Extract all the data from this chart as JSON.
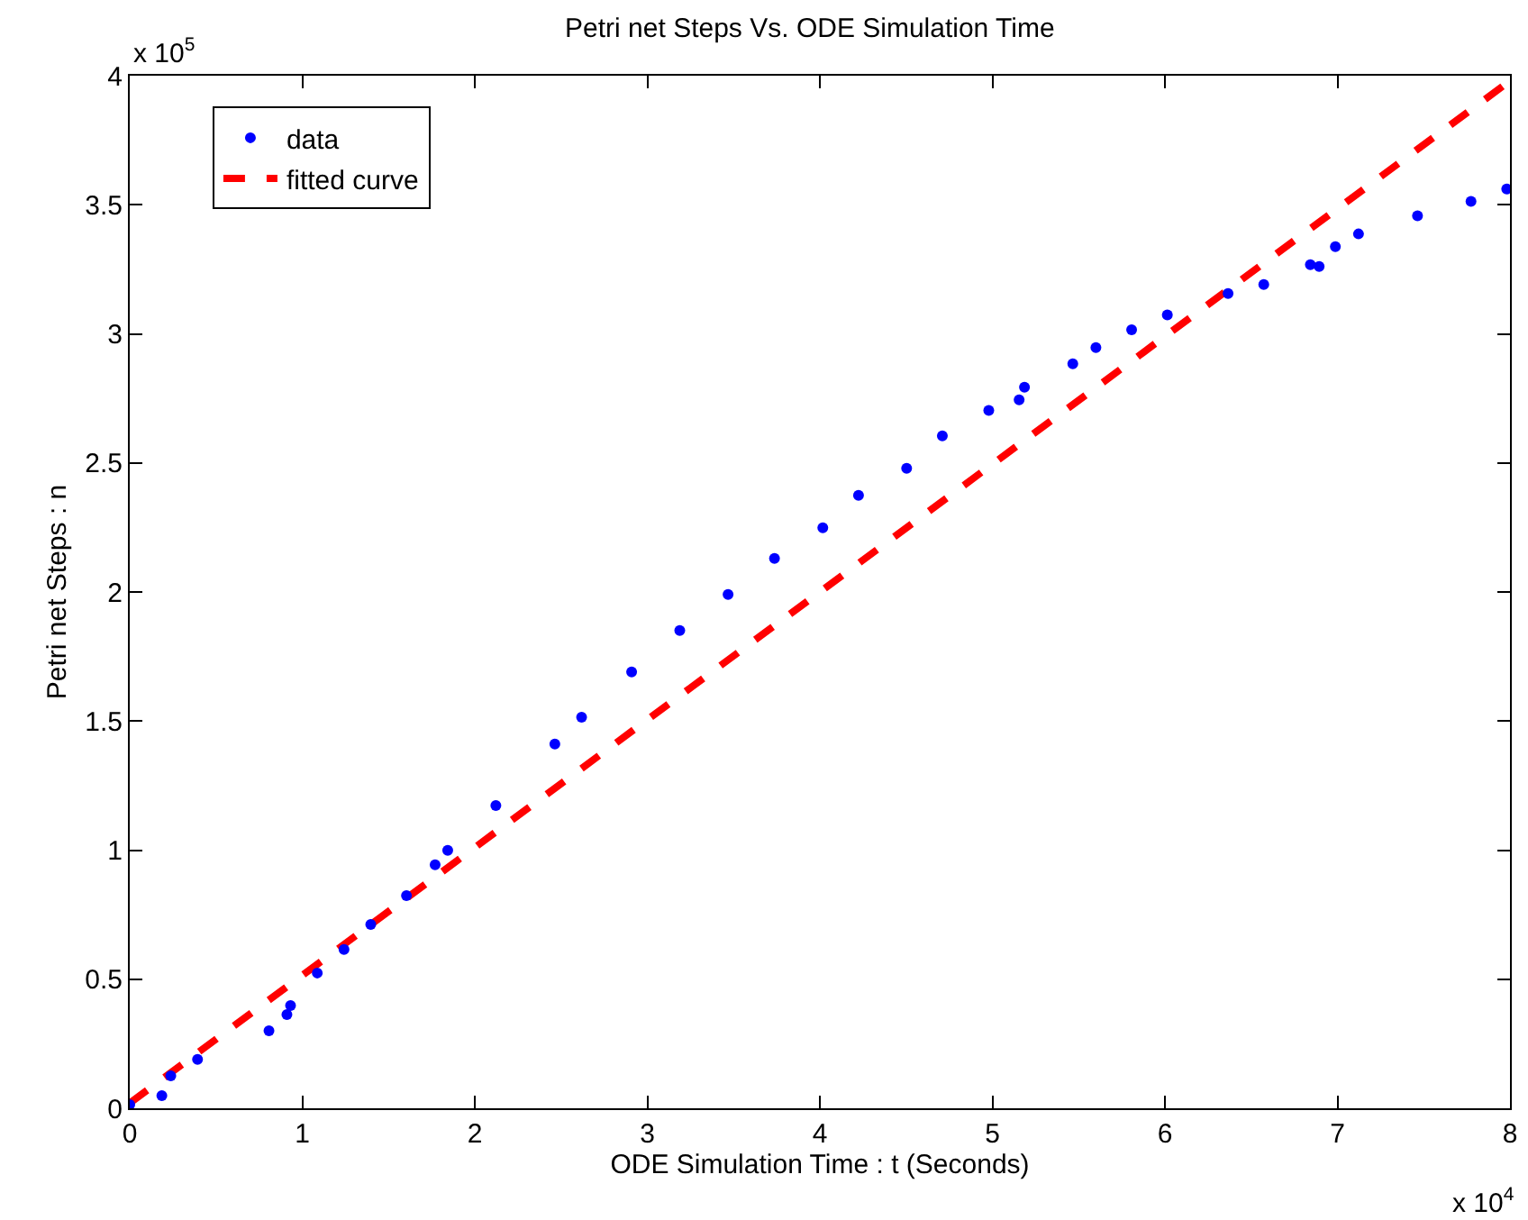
{
  "chart_data": {
    "type": "scatter",
    "title": "Petri net Steps Vs. ODE Simulation Time",
    "xlabel": "ODE Simulation Time : t (Seconds)",
    "ylabel": "Petri net Steps : n",
    "annotations": [
      "x 10$^{5}$",
      "x 10$^{4}$"
    ],
    "series": [
      {
        "name": "data",
        "marker": "circle",
        "color": "#0000ff",
        "x": [
          0,
          0.186,
          0.238,
          0.393,
          0.807,
          0.911,
          0.932,
          1.087,
          1.242,
          1.397,
          1.604,
          1.77,
          1.843,
          2.122,
          2.464,
          2.619,
          2.909,
          3.188,
          3.468,
          3.737,
          4.017,
          4.224,
          4.503,
          4.71,
          4.979,
          5.155,
          5.186,
          5.466,
          5.6,
          5.807,
          6.014,
          6.366,
          6.573,
          6.843,
          6.894,
          6.988,
          7.122,
          7.464,
          7.774,
          7.981
        ],
        "values": [
          0.014,
          0.049,
          0.126,
          0.189,
          0.3,
          0.363,
          0.398,
          0.524,
          0.615,
          0.712,
          0.824,
          0.943,
          0.999,
          1.173,
          1.411,
          1.515,
          1.69,
          1.851,
          1.99,
          2.13,
          2.249,
          2.374,
          2.479,
          2.605,
          2.703,
          2.744,
          2.793,
          2.884,
          2.947,
          3.016,
          3.073,
          3.156,
          3.191,
          3.268,
          3.261,
          3.338,
          3.387,
          3.457,
          3.513,
          3.561
        ]
      },
      {
        "name": "fitted curve",
        "type": "line",
        "line_style": "dashed",
        "color": "#ff0000",
        "x": [
          0,
          8
        ],
        "values": [
          0.02,
          3.98
        ]
      }
    ],
    "xlim": [
      0,
      8
    ],
    "ylim": [
      0,
      4
    ],
    "xticks": [
      0,
      1,
      2,
      3,
      4,
      5,
      6,
      7,
      8
    ],
    "yticks": [
      0,
      0.5,
      1,
      1.5,
      2,
      2.5,
      3,
      3.5,
      4
    ],
    "grid": false,
    "legend": "top left"
  }
}
